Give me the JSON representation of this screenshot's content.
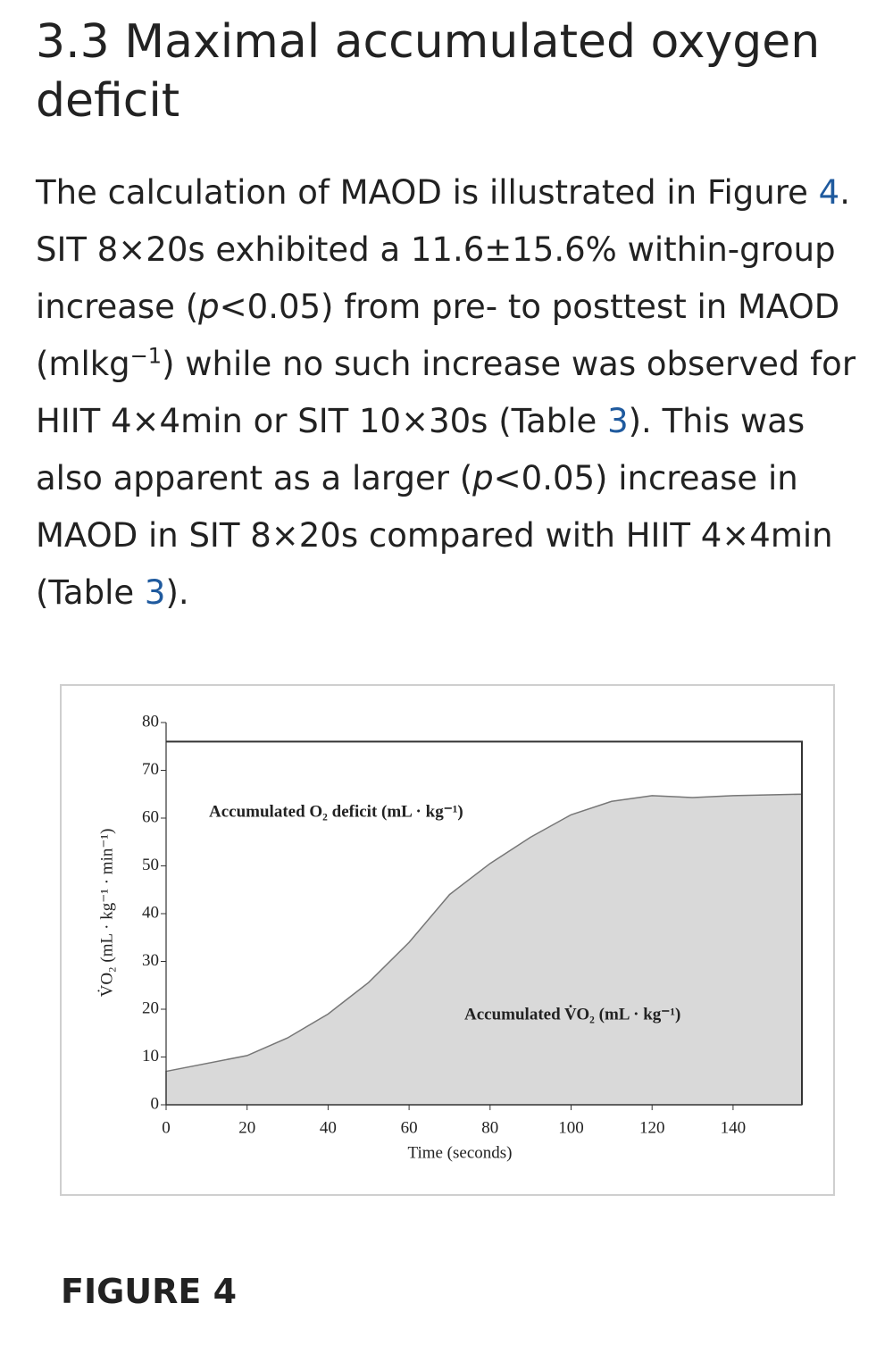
{
  "heading": "3.3 Maximal accumulated oxygen deficit",
  "paragraph": [
    {
      "text": "The calculation of MAOD is illustrated in Figure "
    },
    {
      "text": "4",
      "style": "link"
    },
    {
      "text": ". SIT 8×20s exhibited a 11.6±15.6% within-group increase ("
    },
    {
      "text": "p",
      "style": "italic"
    },
    {
      "text": "<0.05) from pre- to posttest in MAOD (mlkg"
    },
    {
      "text": "−1",
      "style": "sup"
    },
    {
      "text": ") while no such increase was observed for HIIT 4×4min or SIT 10×30s (Table "
    },
    {
      "text": "3",
      "style": "link"
    },
    {
      "text": "). This was also apparent as a larger ("
    },
    {
      "text": "p",
      "style": "italic"
    },
    {
      "text": "<0.05) increase in MAOD in SIT 8×20s compared with HIIT 4×4min (Table "
    },
    {
      "text": "3",
      "style": "link"
    },
    {
      "text": ")."
    }
  ],
  "chart_data": {
    "type": "area",
    "x_label": "Time (seconds)",
    "y_label": "V̇O₂ (mL · kg⁻¹ · min⁻¹)",
    "annotations": [
      "Accumulated O₂ deficit (mL · kg⁻¹)",
      "Accumulated V̇O₂ (mL · kg⁻¹)"
    ],
    "demand_level": 76,
    "series": [
      {
        "color": "#d9d9d9",
        "x": [
          0,
          20,
          30,
          40,
          50,
          60,
          70,
          80,
          90,
          100,
          110,
          120,
          130,
          140,
          157
        ],
        "values": [
          7,
          10.3,
          14,
          19,
          25.6,
          34,
          44,
          50.5,
          56,
          60.7,
          63.5,
          64.7,
          64.3,
          64.7,
          65
        ]
      }
    ],
    "xlim": [
      0,
      157
    ],
    "xticks": [
      0,
      20,
      40,
      60,
      80,
      100,
      120,
      140
    ],
    "ylim": [
      0,
      80
    ],
    "yticks": [
      0,
      10,
      20,
      30,
      40,
      50,
      60,
      70,
      80
    ]
  },
  "figure_label": "FIGURE 4"
}
